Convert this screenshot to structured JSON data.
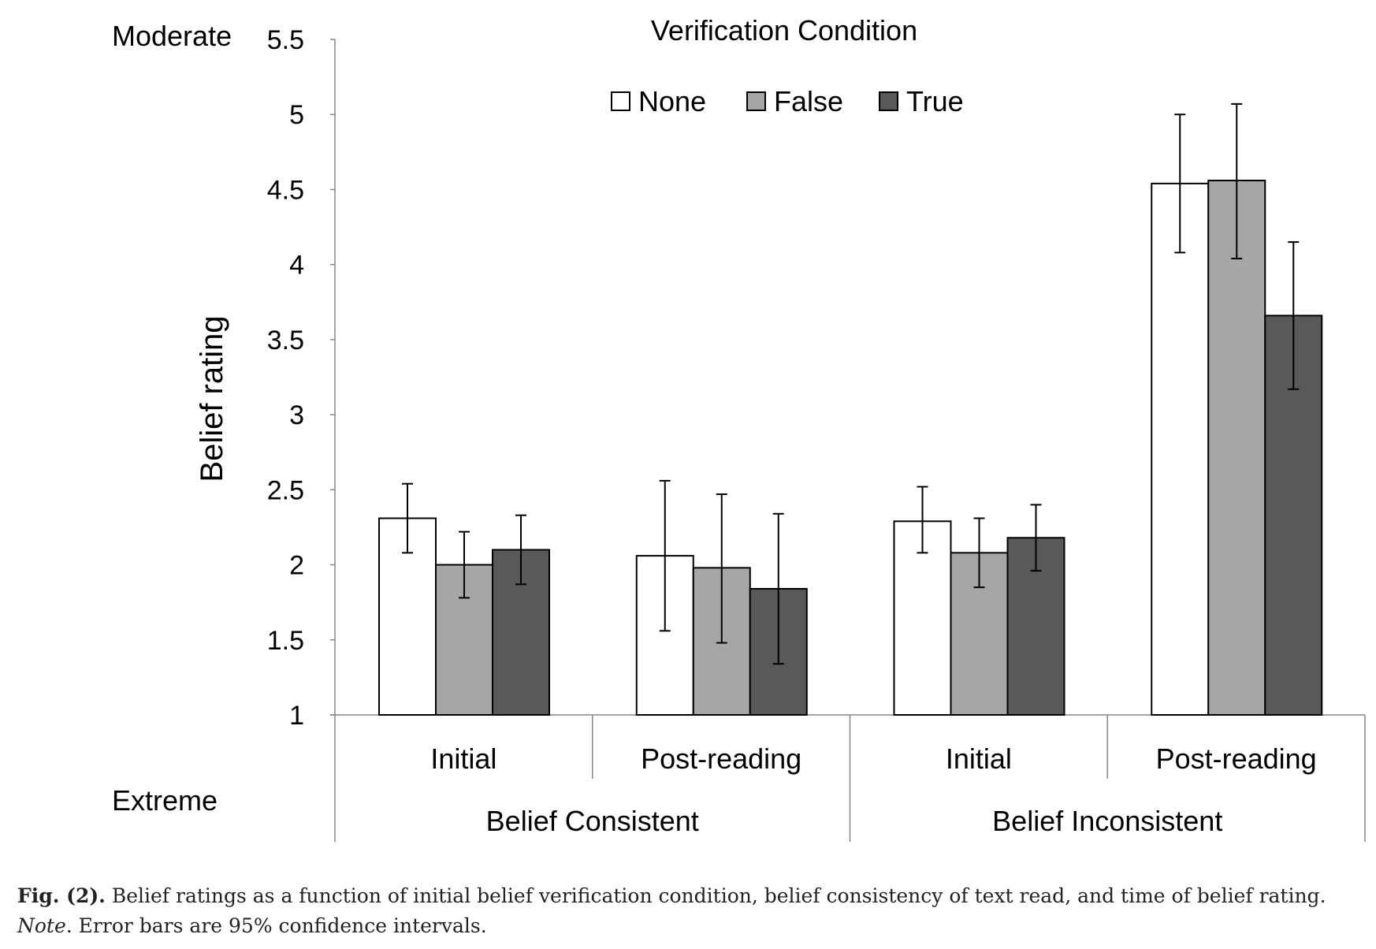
{
  "chart_data": {
    "type": "bar",
    "title": "Verification Condition",
    "ylabel": "Belief rating",
    "y_end_labels": {
      "top": "Moderate",
      "bottom": "Extreme"
    },
    "ylim": [
      1,
      5.5
    ],
    "yticks": [
      "1",
      "1.5",
      "2",
      "2.5",
      "3",
      "3.5",
      "4",
      "4.5",
      "5",
      "5.5"
    ],
    "grid": false,
    "legend_position": "top-center",
    "groups": [
      "Belief Consistent",
      "Belief Inconsistent"
    ],
    "categories": [
      "Initial",
      "Post-reading",
      "Initial",
      "Post-reading"
    ],
    "series": [
      {
        "name": "None",
        "color": "#ffffff",
        "values": [
          2.31,
          2.06,
          2.29,
          4.54
        ],
        "ci_low": [
          2.08,
          1.56,
          2.08,
          4.08
        ],
        "ci_high": [
          2.54,
          2.56,
          2.52,
          5.0
        ]
      },
      {
        "name": "False",
        "color": "#a6a6a6",
        "values": [
          2.0,
          1.98,
          2.08,
          4.56
        ],
        "ci_low": [
          1.78,
          1.48,
          1.85,
          4.04
        ],
        "ci_high": [
          2.22,
          2.47,
          2.31,
          5.07
        ]
      },
      {
        "name": "True",
        "color": "#595959",
        "values": [
          2.1,
          1.84,
          2.18,
          3.66
        ],
        "ci_low": [
          1.87,
          1.34,
          1.96,
          3.17
        ],
        "ci_high": [
          2.33,
          2.34,
          2.4,
          4.15
        ]
      }
    ]
  },
  "caption": {
    "label": "Fig. (2).",
    "text": " Belief ratings as a function of initial belief verification condition, belief consistency of text read, and time of belief rating.",
    "note_label": "Note",
    "note_text": ". Error bars are 95% confidence intervals."
  }
}
